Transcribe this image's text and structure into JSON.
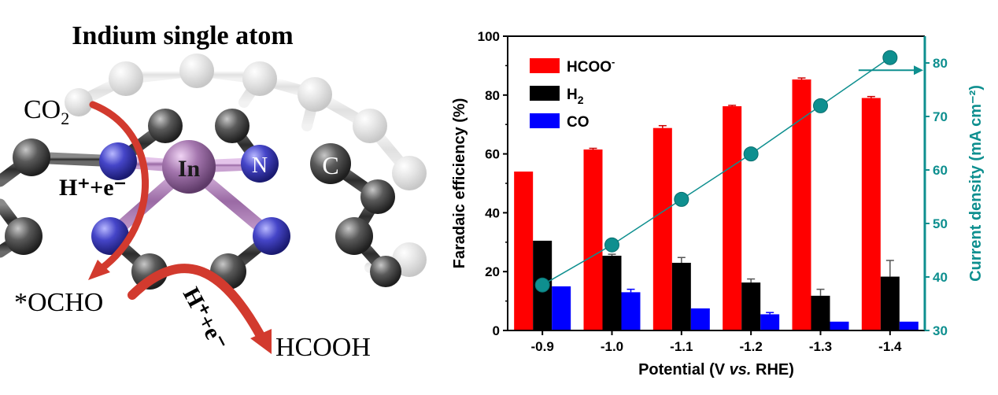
{
  "scene": {
    "title": "Indium single atom",
    "labels": {
      "co2": "CO2",
      "co2_main": "CO",
      "co2_sub": "2",
      "h_plus_e_1": "H⁺+e⁻",
      "h_plus_e_2": "H⁺+e⁻",
      "indium": "In",
      "nitrogen": "N",
      "carbon": "C",
      "ocho": "*OCHO",
      "hcooh": "HCOOH"
    },
    "colors": {
      "carbon_atom": "#4a4a4a",
      "nitrogen_atom": "#3a3ab0",
      "indium_atom": "#9c6aa6",
      "arrow": "#d23a2e"
    }
  },
  "chart_data": {
    "type": "bar",
    "categories": [
      "-0.9",
      "-1.0",
      "-1.1",
      "-1.2",
      "-1.3",
      "-1.4"
    ],
    "series": [
      {
        "name": "HCOO⁻",
        "color": "#ff0000",
        "values": [
          54,
          61.5,
          68.8,
          76.2,
          85.3,
          79
        ],
        "errors": [
          0,
          0.4,
          0.8,
          0.3,
          0.5,
          0.5
        ]
      },
      {
        "name": "H2",
        "color": "#000000",
        "values": [
          30.5,
          25.4,
          23,
          16.3,
          11.8,
          18.3
        ],
        "errors": [
          0,
          0.5,
          1.8,
          1.2,
          2.2,
          5.5
        ]
      },
      {
        "name": "CO",
        "color": "#0000ff",
        "values": [
          15,
          13,
          7.5,
          5.5,
          3,
          3
        ],
        "errors": [
          0,
          1.0,
          0,
          0.6,
          0,
          0
        ]
      }
    ],
    "legend": [
      {
        "label": "HCOO",
        "sup": "-",
        "sub": "",
        "color": "#ff0000"
      },
      {
        "label": "H",
        "sup": "",
        "sub": "2",
        "color": "#000000"
      },
      {
        "label": "CO",
        "sup": "",
        "sub": "",
        "color": "#0000ff"
      }
    ],
    "line_series": {
      "name": "Current density",
      "color": "#0e8f8f",
      "values": [
        38.5,
        46,
        54.5,
        63,
        72,
        81
      ]
    },
    "xlabel": "Potential (V vs. RHE)",
    "xlabel_parts": [
      "Potential (V ",
      "vs.",
      " RHE)"
    ],
    "ylabel": "Faradaic efficiency (%)",
    "y2label": "Current density (mA cm⁻²)",
    "ylim": [
      0,
      100
    ],
    "y2lim": [
      30,
      85
    ],
    "yticks": [
      "0",
      "20",
      "40",
      "60",
      "80",
      "100"
    ],
    "y2ticks": [
      "30",
      "40",
      "50",
      "60",
      "70",
      "80"
    ],
    "legend_position": "top-left",
    "axis_color": "#000000",
    "y2_axis_color": "#0e8f8f"
  }
}
